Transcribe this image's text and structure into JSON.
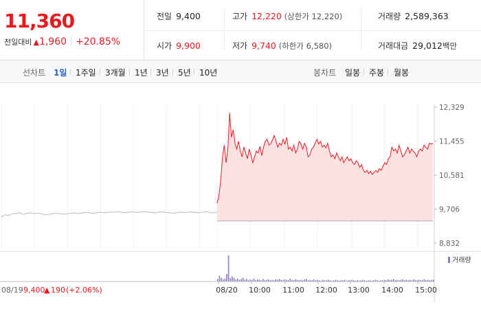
{
  "header": {
    "price": "11,360",
    "change_label": "전일대비",
    "change_arrow": "▲",
    "change_value": "1,960",
    "change_pct": "+20.85%",
    "stats": {
      "prev_close": {
        "label": "전일",
        "value": "9,400"
      },
      "open": {
        "label": "시가",
        "value": "9,900"
      },
      "high": {
        "label": "고가",
        "value": "12,220",
        "sub": "(상한가 12,220)"
      },
      "low": {
        "label": "저가",
        "value": "9,740",
        "sub": "(하한가 6,580)"
      },
      "volume": {
        "label": "거래량",
        "value": "2,589,363"
      },
      "amount": {
        "label": "거래대금",
        "value": "29,012",
        "unit": "백만"
      }
    }
  },
  "toolbar": {
    "line_label": "선차트",
    "line_periods": [
      "1일",
      "1주일",
      "3개월",
      "1년",
      "3년",
      "5년",
      "10년"
    ],
    "candle_label": "봉차트",
    "candle_periods": [
      "일봉",
      "주봉",
      "월봉"
    ]
  },
  "chart_data": {
    "type": "line",
    "y_ticks": [
      "12,329",
      "11,455",
      "10,581",
      "9,706",
      "8,832"
    ],
    "ylim": [
      8832,
      12329
    ],
    "x_ticks": [
      "08/20",
      "10:00",
      "11:00",
      "12:00",
      "13:00",
      "14:00",
      "15:00"
    ],
    "prev_day": {
      "date": "08/19",
      "close": "9,400",
      "arrow": "▲",
      "change": "190",
      "pct": "(+2.06%)"
    },
    "volume_legend": "거래량",
    "colors": {
      "up": "#e8191f",
      "fill": "#fde2e2",
      "prev_line": "#bbbbbb",
      "volume": "#8e7cc3"
    },
    "prev_series": [
      9500,
      9560,
      9540,
      9590,
      9580,
      9620,
      9570,
      9600,
      9610,
      9590,
      9600,
      9580,
      9560,
      9570,
      9590,
      9600,
      9585,
      9575,
      9580,
      9600,
      9610,
      9590,
      9605,
      9620,
      9610,
      9600,
      9615,
      9625,
      9610,
      9620,
      9630,
      9625,
      9640,
      9620,
      9615,
      9630,
      9635,
      9620,
      9630,
      9640,
      9630,
      9620,
      9610,
      9625,
      9635,
      9620,
      9610,
      9600,
      9615,
      9630,
      9620,
      9625,
      9635,
      9620,
      9610,
      9625,
      9640,
      9615,
      9610,
      9630
    ],
    "today_series": [
      9860,
      10050,
      10450,
      11050,
      11350,
      10900,
      11250,
      12180,
      11550,
      11750,
      11400,
      11250,
      11450,
      11200,
      11050,
      11300,
      11150,
      11000,
      11250,
      11100,
      10900,
      11050,
      11200,
      11150,
      11320,
      11080,
      11300,
      11450,
      11500,
      11350,
      11380,
      11480,
      11600,
      11450,
      11300,
      11400,
      11350,
      11500,
      11380,
      11550,
      11250,
      11300,
      11200,
      11350,
      11150,
      11250,
      11450,
      11380,
      11250,
      11400,
      11300,
      11050,
      11100,
      11250,
      11300,
      11400,
      11500,
      11380,
      11450,
      11300,
      11350,
      11280,
      11400,
      11200,
      11050,
      11100,
      11000,
      11150,
      11050,
      10950,
      11050,
      10900,
      10980,
      11050,
      10950,
      11000,
      10900,
      10850,
      10950,
      10900,
      10780,
      10850,
      10700,
      10650,
      10700,
      10620,
      10680,
      10600,
      10650,
      10700,
      10650,
      10750,
      10700,
      10800,
      10900,
      10850,
      11000,
      11050,
      11300,
      11200,
      11250,
      11150,
      11350,
      11200,
      11050,
      11100,
      11200,
      11300,
      11150,
      11250,
      11200,
      11150,
      11050,
      11200,
      11250,
      11200,
      11350,
      11300,
      11250,
      11400,
      11380,
      11400
    ],
    "volume_series": [
      6,
      14,
      9,
      5,
      7,
      18,
      62,
      8,
      12,
      9,
      5,
      7,
      4,
      6,
      9,
      4,
      6,
      3,
      5,
      4,
      7,
      3,
      5,
      4,
      3,
      6,
      3,
      4,
      5,
      3,
      4,
      3,
      5,
      4,
      6,
      4,
      3,
      5,
      4,
      3,
      7,
      4,
      3,
      5,
      4,
      3,
      4,
      3,
      5,
      6,
      3,
      4,
      3,
      5,
      3,
      4,
      3,
      2,
      4,
      3,
      3,
      4,
      3,
      2,
      3,
      4,
      3,
      2,
      3,
      3,
      4,
      2,
      3,
      3,
      4,
      3,
      2,
      3,
      2,
      3,
      4,
      3,
      2,
      3,
      3,
      2,
      3,
      4,
      3,
      2,
      3,
      3,
      4,
      3,
      5,
      3,
      4,
      6,
      3,
      4,
      3,
      4,
      5,
      3,
      4,
      3,
      4,
      3,
      5,
      4,
      3,
      4,
      3,
      4,
      5,
      3,
      4,
      3,
      4,
      4
    ]
  }
}
